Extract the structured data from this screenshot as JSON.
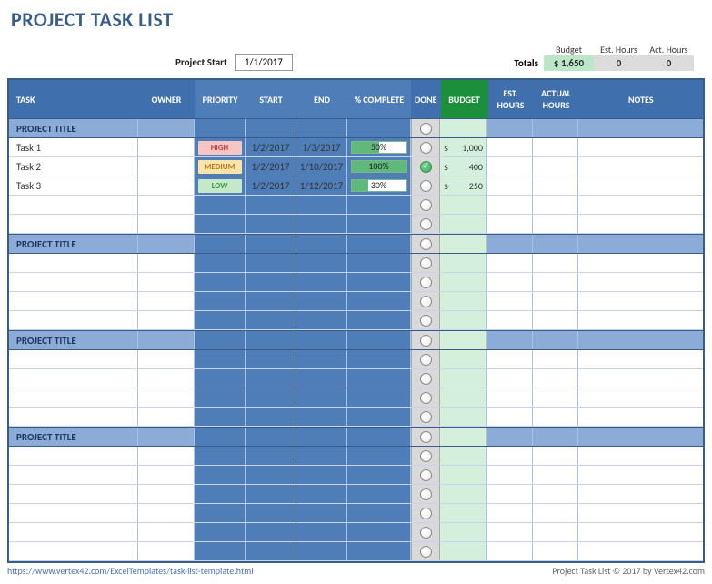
{
  "title": "PROJECT TASK LIST",
  "project_start": {
    "label": "Project Start",
    "value": "1/1/2017"
  },
  "totals": {
    "label": "Totals",
    "budget_label": "Budget",
    "est_hours_label": "Est. Hours",
    "act_hours_label": "Act. Hours",
    "budget": "$ 1,650",
    "est_hours": "0",
    "act_hours": "0"
  },
  "columns": {
    "task": "TASK",
    "owner": "OWNER",
    "priority": "PRIORITY",
    "start": "START",
    "end": "END",
    "complete": "% COMPLETE",
    "done": "DONE",
    "budget": "BUDGET",
    "est_hours": "EST. HOURS",
    "act_hours": "ACTUAL HOURS",
    "notes": "NOTES"
  },
  "section_title": "PROJECT TITLE",
  "priority_styles": {
    "HIGH": {
      "bg": "#f8c5c5",
      "fg": "#c94040"
    },
    "MEDIUM": {
      "bg": "#fbe3a9",
      "fg": "#b67a15"
    },
    "LOW": {
      "bg": "#c5e9c8",
      "fg": "#3a9a4a"
    }
  },
  "colors": {
    "header_bg": "#3f6fad",
    "header_sub_bg": "#4f7db8",
    "budget_header_bg": "#1b8f3a",
    "section_bg": "#8cabd7",
    "done_col_bg": "#d9d9d9",
    "budget_col_bg": "#d4f0dd",
    "border": "#385d8a",
    "pct_fill": "#5fb97a"
  },
  "sections": [
    {
      "rows": [
        {
          "task": "Task 1",
          "owner": "",
          "priority": "HIGH",
          "start": "1/2/2017",
          "end": "1/3/2017",
          "pct": 50,
          "done": false,
          "budget": "1,000",
          "est": "",
          "act": "",
          "notes": ""
        },
        {
          "task": "Task 2",
          "owner": "",
          "priority": "MEDIUM",
          "start": "1/2/2017",
          "end": "1/10/2017",
          "pct": 100,
          "done": true,
          "budget": "400",
          "est": "",
          "act": "",
          "notes": ""
        },
        {
          "task": "Task 3",
          "owner": "",
          "priority": "LOW",
          "start": "1/2/2017",
          "end": "1/12/2017",
          "pct": 30,
          "done": false,
          "budget": "250",
          "est": "",
          "act": "",
          "notes": ""
        },
        {
          "task": "",
          "owner": "",
          "priority": "",
          "start": "",
          "end": "",
          "pct": null,
          "done": false,
          "budget": "",
          "est": "",
          "act": "",
          "notes": ""
        },
        {
          "task": "",
          "owner": "",
          "priority": "",
          "start": "",
          "end": "",
          "pct": null,
          "done": false,
          "budget": "",
          "est": "",
          "act": "",
          "notes": ""
        }
      ]
    },
    {
      "rows": [
        {
          "task": "",
          "owner": "",
          "priority": "",
          "start": "",
          "end": "",
          "pct": null,
          "done": false,
          "budget": "",
          "est": "",
          "act": "",
          "notes": ""
        },
        {
          "task": "",
          "owner": "",
          "priority": "",
          "start": "",
          "end": "",
          "pct": null,
          "done": false,
          "budget": "",
          "est": "",
          "act": "",
          "notes": ""
        },
        {
          "task": "",
          "owner": "",
          "priority": "",
          "start": "",
          "end": "",
          "pct": null,
          "done": false,
          "budget": "",
          "est": "",
          "act": "",
          "notes": ""
        },
        {
          "task": "",
          "owner": "",
          "priority": "",
          "start": "",
          "end": "",
          "pct": null,
          "done": false,
          "budget": "",
          "est": "",
          "act": "",
          "notes": ""
        }
      ]
    },
    {
      "rows": [
        {
          "task": "",
          "owner": "",
          "priority": "",
          "start": "",
          "end": "",
          "pct": null,
          "done": false,
          "budget": "",
          "est": "",
          "act": "",
          "notes": ""
        },
        {
          "task": "",
          "owner": "",
          "priority": "",
          "start": "",
          "end": "",
          "pct": null,
          "done": false,
          "budget": "",
          "est": "",
          "act": "",
          "notes": ""
        },
        {
          "task": "",
          "owner": "",
          "priority": "",
          "start": "",
          "end": "",
          "pct": null,
          "done": false,
          "budget": "",
          "est": "",
          "act": "",
          "notes": ""
        },
        {
          "task": "",
          "owner": "",
          "priority": "",
          "start": "",
          "end": "",
          "pct": null,
          "done": false,
          "budget": "",
          "est": "",
          "act": "",
          "notes": ""
        }
      ]
    },
    {
      "rows": [
        {
          "task": "",
          "owner": "",
          "priority": "",
          "start": "",
          "end": "",
          "pct": null,
          "done": false,
          "budget": "",
          "est": "",
          "act": "",
          "notes": ""
        },
        {
          "task": "",
          "owner": "",
          "priority": "",
          "start": "",
          "end": "",
          "pct": null,
          "done": false,
          "budget": "",
          "est": "",
          "act": "",
          "notes": ""
        },
        {
          "task": "",
          "owner": "",
          "priority": "",
          "start": "",
          "end": "",
          "pct": null,
          "done": false,
          "budget": "",
          "est": "",
          "act": "",
          "notes": ""
        },
        {
          "task": "",
          "owner": "",
          "priority": "",
          "start": "",
          "end": "",
          "pct": null,
          "done": false,
          "budget": "",
          "est": "",
          "act": "",
          "notes": ""
        },
        {
          "task": "",
          "owner": "",
          "priority": "",
          "start": "",
          "end": "",
          "pct": null,
          "done": false,
          "budget": "",
          "est": "",
          "act": "",
          "notes": ""
        },
        {
          "task": "",
          "owner": "",
          "priority": "",
          "start": "",
          "end": "",
          "pct": null,
          "done": false,
          "budget": "",
          "est": "",
          "act": "",
          "notes": ""
        }
      ]
    }
  ],
  "footer": {
    "left": "https://www.vertex42.com/ExcelTemplates/task-list-template.html",
    "right": "Project Task List © 2017 by Vertex42.com"
  }
}
